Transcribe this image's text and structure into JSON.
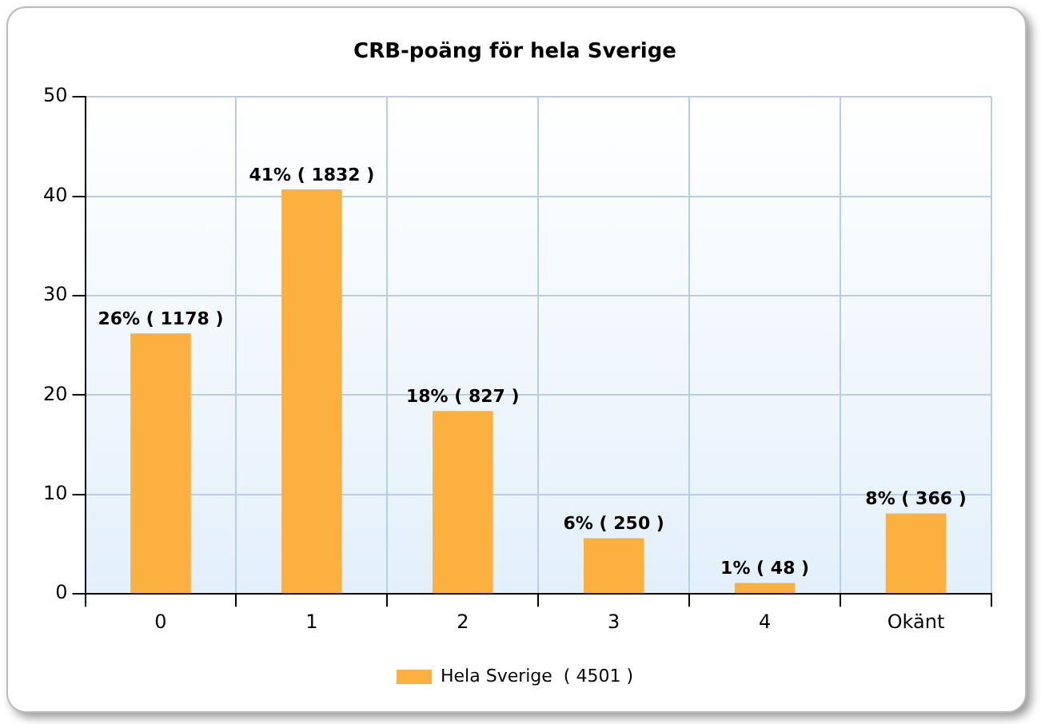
{
  "chart_data": {
    "type": "bar",
    "title": "CRB-poäng för hela Sverige",
    "categories": [
      "0",
      "1",
      "2",
      "3",
      "4",
      "Okänt"
    ],
    "series": [
      {
        "name": "Hela Sverige  ( 4501 )",
        "color": "#fbb040",
        "values": [
          26.2,
          40.7,
          18.4,
          5.6,
          1.1,
          8.1
        ],
        "value_labels": [
          "26% ( 1178 )",
          "41% ( 1832 )",
          "18% ( 827 )",
          "6% ( 250 )",
          "1% ( 48 )",
          "8% ( 366 )"
        ]
      }
    ],
    "ylim": [
      0,
      50
    ],
    "yticks": [
      0,
      10,
      20,
      30,
      40,
      50
    ],
    "grid": true,
    "legend": "bottom"
  }
}
